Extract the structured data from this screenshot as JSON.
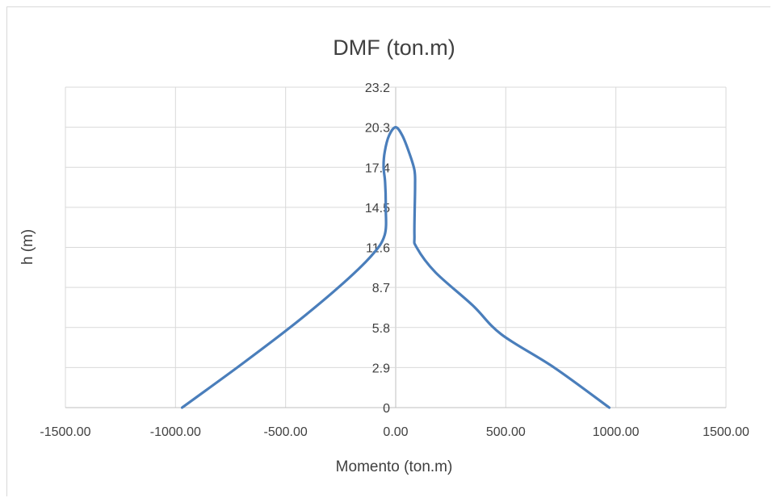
{
  "chart_data": {
    "type": "line",
    "title": "DMF (ton.m)",
    "xlabel": "Momento (ton.m)",
    "ylabel": "h (m)",
    "xlim": [
      -1500,
      1500
    ],
    "ylim": [
      0,
      23.2
    ],
    "x_ticks": [
      "-1500.00",
      "-1000.00",
      "-500.00",
      "0.00",
      "500.00",
      "1000.00",
      "1500.00"
    ],
    "y_ticks": [
      "0",
      "2.9",
      "5.8",
      "8.7",
      "11.6",
      "14.5",
      "17.4",
      "20.3",
      "23.2"
    ],
    "grid": true,
    "line_color": "#4a7ebb",
    "series": [
      {
        "x": [
          -970,
          -720,
          -480,
          -260,
          -110,
          -50,
          -45,
          -48,
          -55,
          -50,
          -30,
          0,
          30,
          60,
          85,
          88,
          85,
          95,
          180,
          350,
          480,
          720,
          970
        ],
        "y": [
          0,
          2.9,
          5.8,
          8.7,
          11.0,
          12.5,
          14.5,
          16.3,
          17.4,
          18.5,
          19.7,
          20.3,
          19.7,
          18.5,
          17.2,
          16.0,
          12.5,
          11.6,
          9.8,
          7.4,
          5.3,
          2.9,
          0
        ]
      }
    ]
  }
}
